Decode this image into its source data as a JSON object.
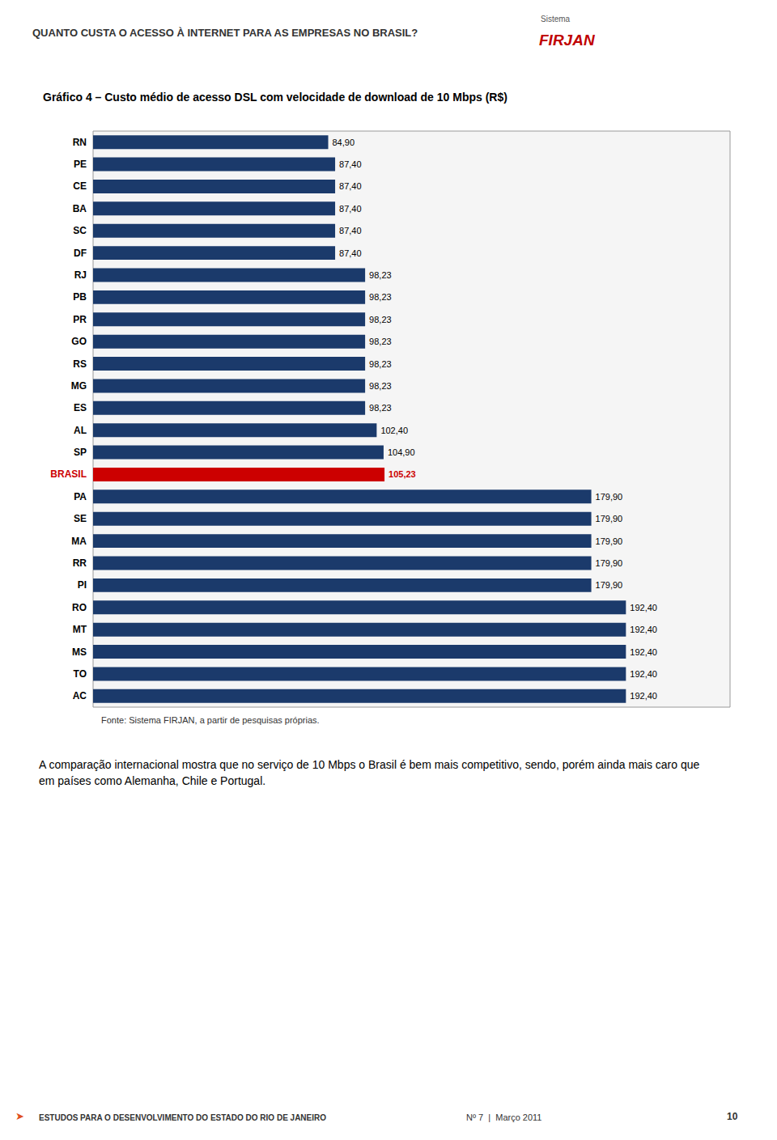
{
  "chart_data": {
    "type": "bar",
    "orientation": "horizontal",
    "title": "Gráfico 4 – Custo médio de acesso DSL com velocidade de download de 10 Mbps (R$)",
    "categories": [
      "RN",
      "PE",
      "CE",
      "BA",
      "SC",
      "DF",
      "RJ",
      "PB",
      "PR",
      "GO",
      "RS",
      "MG",
      "ES",
      "AL",
      "SP",
      "BRASIL",
      "PA",
      "SE",
      "MA",
      "RR",
      "PI",
      "RO",
      "MT",
      "MS",
      "TO",
      "AC"
    ],
    "values": [
      84.9,
      87.4,
      87.4,
      87.4,
      87.4,
      87.4,
      98.23,
      98.23,
      98.23,
      98.23,
      98.23,
      98.23,
      98.23,
      102.4,
      104.9,
      105.23,
      179.9,
      179.9,
      179.9,
      179.9,
      179.9,
      192.4,
      192.4,
      192.4,
      192.4,
      192.4
    ],
    "value_labels": [
      "84,90",
      "87,40",
      "87,40",
      "87,40",
      "87,40",
      "87,40",
      "98,23",
      "98,23",
      "98,23",
      "98,23",
      "98,23",
      "98,23",
      "98,23",
      "102,40",
      "104,90",
      "105,23",
      "179,90",
      "179,90",
      "179,90",
      "179,90",
      "179,90",
      "192,40",
      "192,40",
      "192,40",
      "192,40",
      "192,40"
    ],
    "colors": [
      "#1b3a6b",
      "#1b3a6b",
      "#1b3a6b",
      "#1b3a6b",
      "#1b3a6b",
      "#1b3a6b",
      "#1b3a6b",
      "#1b3a6b",
      "#1b3a6b",
      "#1b3a6b",
      "#1b3a6b",
      "#1b3a6b",
      "#1b3a6b",
      "#1b3a6b",
      "#1b3a6b",
      "#cc0000",
      "#1b3a6b",
      "#1b3a6b",
      "#1b3a6b",
      "#1b3a6b",
      "#1b3a6b",
      "#1b3a6b",
      "#1b3a6b",
      "#1b3a6b",
      "#1b3a6b",
      "#1b3a6b"
    ],
    "xlim": [
      0,
      230
    ],
    "tick_labels": "y",
    "grid": false,
    "data_labels": true,
    "annotations": [
      "QUANTO CUSTA O ACESSO À INTERNET PARA AS EMPRESAS NO BRASIL?",
      "Sistema",
      "FIRJAN",
      "Fonte: Sistema FIRJAN, a partir de pesquisas próprias.",
      "A comparação internacional mostra que no serviço de 10 Mbps o Brasil é bem mais competitivo, sendo, porém ainda mais caro que em países como Alemanha, Chile e Portugal.",
      "➤",
      "ESTUDOS PARA O DESENVOLVIMENTO DO ESTADO DO RIO DE JANEIRO",
      "Nº 7  |  Março 2011",
      "10"
    ]
  }
}
